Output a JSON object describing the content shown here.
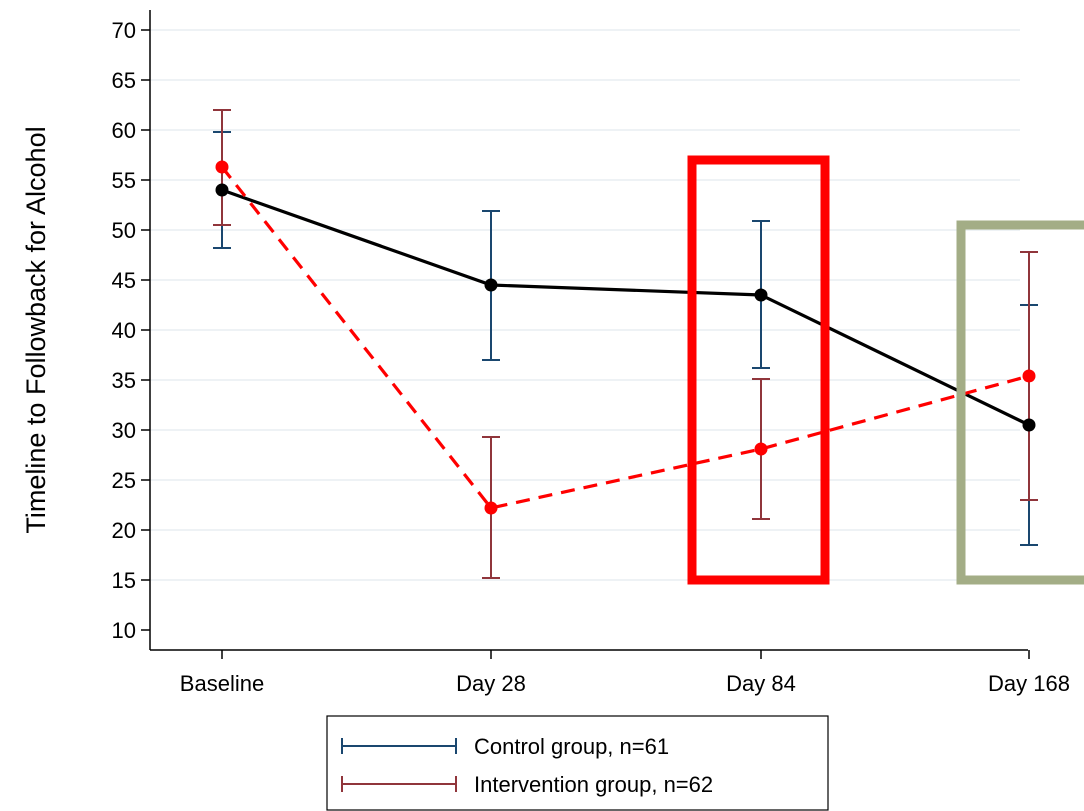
{
  "chart_data": {
    "type": "line",
    "title": "",
    "ylabel": "Timeline to Followback for Alcohol",
    "xlabel": "",
    "categories": [
      "Baseline",
      "Day 28",
      "Day 84",
      "Day 168"
    ],
    "ylim": [
      10,
      70
    ],
    "yticks": [
      10,
      15,
      20,
      25,
      30,
      35,
      40,
      45,
      50,
      55,
      60,
      65,
      70
    ],
    "grid": true,
    "legend_position": "bottom-center",
    "series": [
      {
        "name": "Control group, n=61",
        "mean": [
          54.0,
          44.5,
          43.5,
          30.5
        ],
        "ci_lower": [
          48.2,
          37.0,
          36.2,
          18.5
        ],
        "ci_upper": [
          59.8,
          51.9,
          50.9,
          42.5
        ],
        "line_color": "#000000",
        "errorbar_color": "#1a476f",
        "line_style": "solid"
      },
      {
        "name": "Intervention group, n=62",
        "mean": [
          56.3,
          22.2,
          28.1,
          35.4
        ],
        "ci_lower": [
          50.5,
          15.2,
          21.1,
          23.0
        ],
        "ci_upper": [
          62.0,
          29.3,
          35.1,
          47.8
        ],
        "line_color": "#ff0000",
        "errorbar_color": "#90353b",
        "line_style": "dashed"
      }
    ],
    "annotations": [
      {
        "shape": "rectangle",
        "color": "#ff0000",
        "around": "Day 84",
        "y_range": [
          15,
          57
        ]
      },
      {
        "shape": "rectangle",
        "color": "#a3ad86",
        "around": "Day 168",
        "y_range": [
          15,
          50.5
        ]
      }
    ]
  }
}
